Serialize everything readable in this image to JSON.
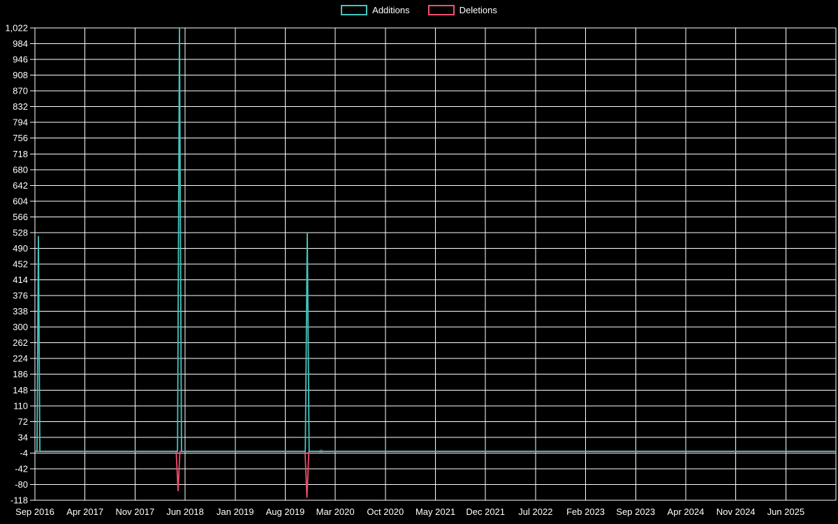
{
  "chart_data": {
    "type": "line",
    "title": "",
    "xlabel": "",
    "ylabel": "",
    "x_tick_labels": [
      "Sep 2016",
      "Apr 2017",
      "Nov 2017",
      "Jun 2018",
      "Jan 2019",
      "Aug 2019",
      "Mar 2020",
      "Oct 2020",
      "May 2021",
      "Dec 2021",
      "Jul 2022",
      "Feb 2023",
      "Sep 2023",
      "Apr 2024",
      "Nov 2024",
      "Jun 2025"
    ],
    "y_tick_values": [
      1022,
      984,
      946,
      908,
      870,
      832,
      794,
      756,
      718,
      680,
      642,
      604,
      566,
      528,
      490,
      452,
      414,
      376,
      338,
      300,
      262,
      224,
      186,
      148,
      110,
      72,
      34,
      -4,
      -42,
      -80,
      -118
    ],
    "ylim": [
      -118,
      1022
    ],
    "grid": true,
    "legend_position": "top-center",
    "colors": {
      "background": "#000000",
      "grid": "#ffffff",
      "text": "#ffffff",
      "additions": "#45c5bf",
      "deletions": "#f1506e"
    },
    "series": [
      {
        "name": "Additions",
        "color": "#45c5bf",
        "points": [
          [
            0,
            0
          ],
          [
            0.0026,
            0
          ],
          [
            0.0044,
            520
          ],
          [
            0.0062,
            0
          ],
          [
            0.178,
            0
          ],
          [
            0.1805,
            1022
          ],
          [
            0.183,
            0
          ],
          [
            0.3376,
            0
          ],
          [
            0.34,
            528
          ],
          [
            0.3424,
            0
          ],
          [
            1,
            0
          ]
        ]
      },
      {
        "name": "Deletions",
        "color": "#f1506e",
        "points": [
          [
            0,
            0
          ],
          [
            0.1764,
            0
          ],
          [
            0.1787,
            -96
          ],
          [
            0.181,
            0
          ],
          [
            0.3372,
            0
          ],
          [
            0.3396,
            -112
          ],
          [
            0.342,
            0
          ],
          [
            1,
            0
          ]
        ]
      }
    ],
    "annotations": [
      {
        "x": 0.3574,
        "y": 0,
        "symbol": "✳"
      }
    ]
  }
}
